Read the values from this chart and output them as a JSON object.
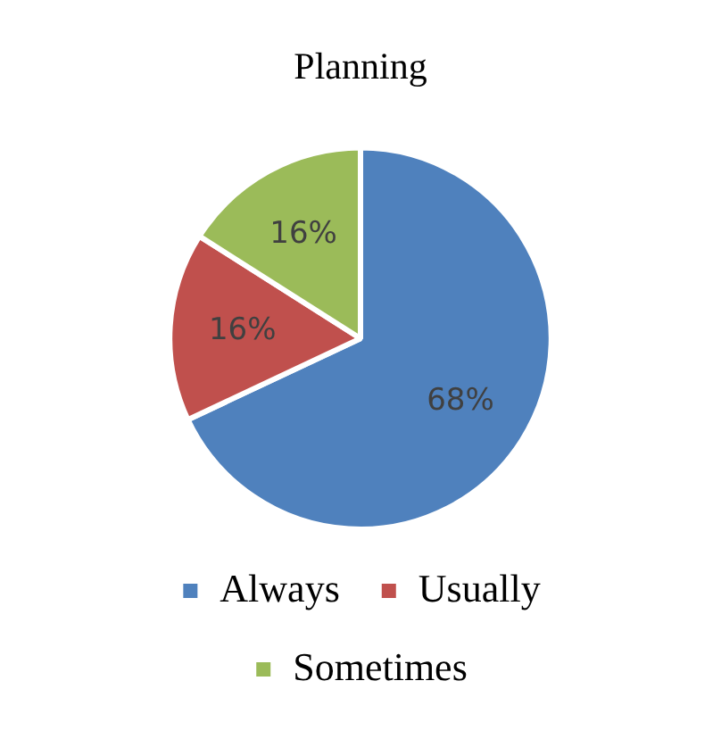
{
  "chart_data": {
    "type": "pie",
    "title": "Planning",
    "categories": [
      "Always",
      "Usually",
      "Sometimes"
    ],
    "values": [
      68,
      16,
      16
    ],
    "colors": [
      "#4f81bd",
      "#c0504d",
      "#9bbb59"
    ],
    "value_labels": [
      "68%",
      "16%",
      "16%"
    ],
    "legend": "bottom"
  }
}
